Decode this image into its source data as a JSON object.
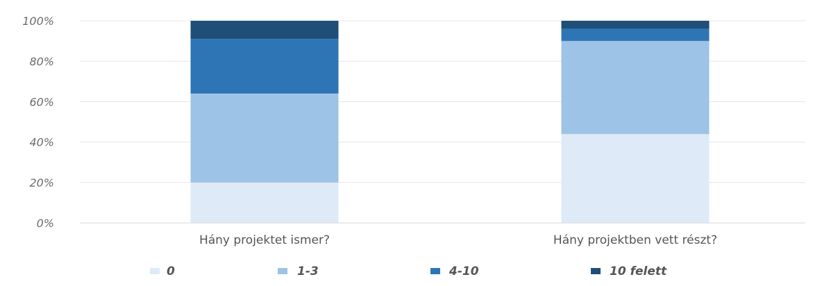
{
  "chart_data": {
    "type": "bar",
    "stacked": true,
    "normalized": true,
    "categories": [
      "Hány projektet ismer?",
      "Hány projektben vett részt?"
    ],
    "series": [
      {
        "name": "0",
        "color": "#deeaf7",
        "values": [
          20,
          44
        ]
      },
      {
        "name": "1-3",
        "color": "#9dc3e6",
        "values": [
          44,
          46
        ]
      },
      {
        "name": "4-10",
        "color": "#2e75b6",
        "values": [
          27,
          6
        ]
      },
      {
        "name": "10 felett",
        "color": "#1f4e79",
        "values": [
          9,
          4
        ]
      }
    ],
    "yticks": [
      "0%",
      "20%",
      "40%",
      "60%",
      "80%",
      "100%"
    ],
    "ylim": [
      0,
      100
    ],
    "grid": true,
    "legend_position": "bottom"
  }
}
